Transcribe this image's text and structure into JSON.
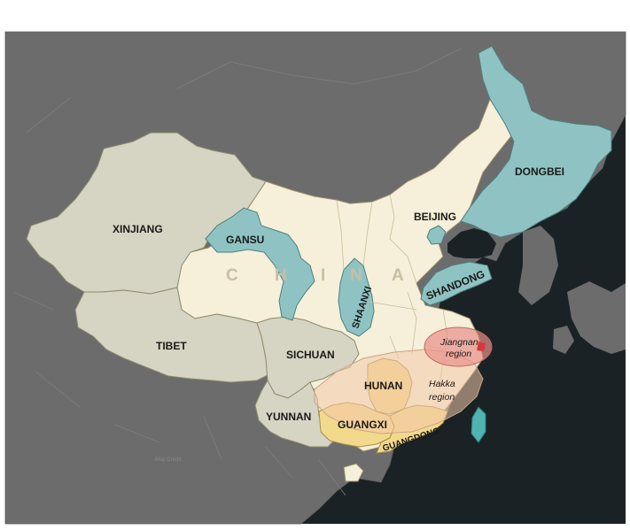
{
  "country_label": [
    "C",
    "H",
    "I",
    "N",
    "A"
  ],
  "regions": {
    "xinjiang": "XINJIANG",
    "tibet": "TIBET",
    "gansu": "GANSU",
    "beijing": "BEIJING",
    "dongbei": "DONGBEI",
    "shandong": "SHANDONG",
    "shaanxi": "SHAANXI",
    "sichuan": "SICHUAN",
    "yunnan": "YUNNAN",
    "hunan": "HUNAN",
    "guangxi": "GUANGXI",
    "guangdong": "GUANGDONG"
  },
  "cultural_regions": {
    "jiangnan_line1": "Jiangnan",
    "jiangnan_line2": "region",
    "hakka_line1": "Hakka",
    "hakka_line2": "region"
  },
  "credit": "Map Credit",
  "colors": {
    "sea": "#1a2226",
    "land_other": "#6c6c6c",
    "western_regions": "#d6d4c2",
    "china_base": "#f6efd9",
    "highlight_teal": "#8fc3c3",
    "south_yellow": "#f3d98c",
    "hakka_overlay": "#f3c9a8",
    "jiangnan_overlay": "#e9908a",
    "shanghai_marker": "#d9363e"
  }
}
